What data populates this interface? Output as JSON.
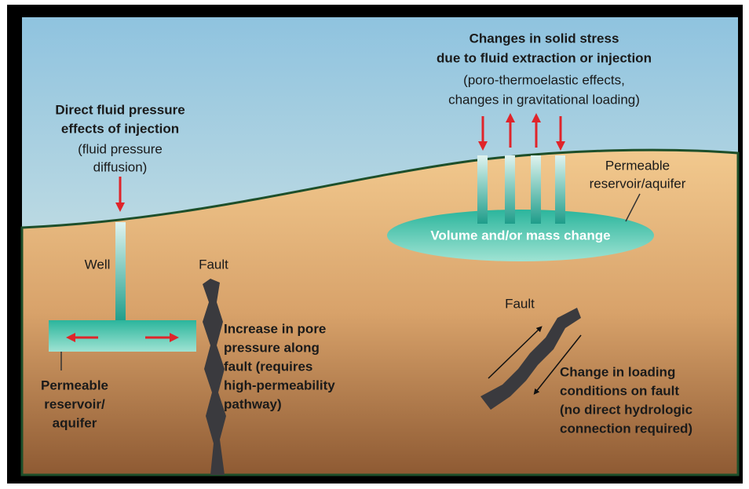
{
  "left": {
    "title": [
      "Direct fluid pressure",
      "effects of injection"
    ],
    "note": [
      "(fluid pressure",
      "diffusion)"
    ],
    "well": "Well",
    "reservoir": [
      "Permeable",
      "reservoir/",
      "aquifer"
    ],
    "fault": "Fault",
    "fault_note": [
      "Increase in pore",
      "pressure along",
      "fault (requires",
      "high-permeability",
      "pathway)"
    ]
  },
  "right": {
    "title": [
      "Changes in solid stress",
      "due to fluid extraction or injection"
    ],
    "note": [
      "(poro-thermoelastic effects,",
      "changes in gravitational loading)"
    ],
    "reservoir": [
      "Permeable",
      "reservoir/aquifer"
    ],
    "volume": "Volume and/or mass change",
    "fault": "Fault",
    "fault_note": [
      "Change in loading",
      "conditions on fault",
      "(no direct hydrologic",
      "connection required)"
    ]
  }
}
